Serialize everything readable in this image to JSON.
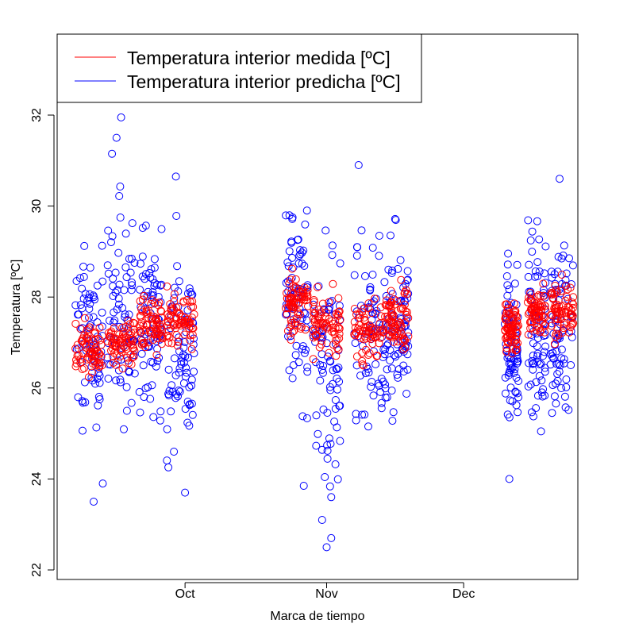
{
  "chart_data": {
    "type": "scatter",
    "title": "",
    "xlabel": "Marca de tiempo",
    "ylabel": "Temperatura [ºC]",
    "x_ticks": [
      "Oct",
      "Nov",
      "Dec"
    ],
    "y_ticks": [
      "22",
      "24",
      "26",
      "28",
      "30",
      "32"
    ],
    "xlim": [
      "2014-09-03",
      "2014-12-26"
    ],
    "ylim": [
      22,
      32.3
    ],
    "grid": false,
    "legend_position": "top-left",
    "series": [
      {
        "name": "Temperatura interior medida [ºC]",
        "color": "#ff0000",
        "marker": "open-circle",
        "clusters": [
          {
            "start": "2014-09-07",
            "end": "2014-09-13",
            "center": 26.9,
            "spread": 0.35
          },
          {
            "start": "2014-09-14",
            "end": "2014-09-20",
            "center": 27.0,
            "spread": 0.35
          },
          {
            "start": "2014-09-21",
            "end": "2014-09-26",
            "center": 27.4,
            "spread": 0.4
          },
          {
            "start": "2014-09-27",
            "end": "2014-10-03",
            "center": 27.5,
            "spread": 0.4
          },
          {
            "start": "2014-10-23",
            "end": "2014-10-28",
            "center": 27.8,
            "spread": 0.35
          },
          {
            "start": "2014-10-29",
            "end": "2014-11-04",
            "center": 27.4,
            "spread": 0.4
          },
          {
            "start": "2014-11-07",
            "end": "2014-11-14",
            "center": 27.3,
            "spread": 0.4
          },
          {
            "start": "2014-11-14",
            "end": "2014-11-19",
            "center": 27.6,
            "spread": 0.4
          },
          {
            "start": "2014-12-10",
            "end": "2014-12-13",
            "center": 27.3,
            "spread": 0.35
          },
          {
            "start": "2014-12-15",
            "end": "2014-12-19",
            "center": 27.6,
            "spread": 0.35
          },
          {
            "start": "2014-12-20",
            "end": "2014-12-25",
            "center": 27.7,
            "spread": 0.35
          }
        ]
      },
      {
        "name": "Temperatura interior predicha [ºC]",
        "color": "#0000ff",
        "marker": "open-circle",
        "clusters": [
          {
            "start": "2014-09-07",
            "end": "2014-09-13",
            "center": 27.1,
            "spread": 1.1
          },
          {
            "start": "2014-09-14",
            "end": "2014-09-20",
            "center": 27.6,
            "spread": 1.5
          },
          {
            "start": "2014-09-21",
            "end": "2014-09-26",
            "center": 27.5,
            "spread": 1.2
          },
          {
            "start": "2014-09-27",
            "end": "2014-10-03",
            "center": 26.8,
            "spread": 1.4
          },
          {
            "start": "2014-10-23",
            "end": "2014-10-28",
            "center": 28.0,
            "spread": 1.3
          },
          {
            "start": "2014-10-29",
            "end": "2014-11-04",
            "center": 26.6,
            "spread": 1.6
          },
          {
            "start": "2014-11-07",
            "end": "2014-11-14",
            "center": 26.9,
            "spread": 1.3
          },
          {
            "start": "2014-11-14",
            "end": "2014-11-19",
            "center": 27.3,
            "spread": 1.2
          },
          {
            "start": "2014-12-10",
            "end": "2014-12-13",
            "center": 27.0,
            "spread": 1.1
          },
          {
            "start": "2014-12-15",
            "end": "2014-12-19",
            "center": 27.3,
            "spread": 1.2
          },
          {
            "start": "2014-12-20",
            "end": "2014-12-25",
            "center": 27.3,
            "spread": 1.1
          }
        ],
        "extreme_points": [
          {
            "x": "2014-09-17",
            "y": 31.95
          },
          {
            "x": "2014-09-16",
            "y": 31.5
          },
          {
            "x": "2014-09-15",
            "y": 31.15
          },
          {
            "x": "2014-09-29",
            "y": 30.65
          },
          {
            "x": "2014-11-08",
            "y": 30.9
          },
          {
            "x": "2014-12-22",
            "y": 30.6
          },
          {
            "x": "2014-09-11",
            "y": 23.5
          },
          {
            "x": "2014-09-13",
            "y": 23.9
          },
          {
            "x": "2014-10-01",
            "y": 23.7
          },
          {
            "x": "2014-11-01",
            "y": 22.5
          },
          {
            "x": "2014-11-02",
            "y": 22.7
          },
          {
            "x": "2014-10-31",
            "y": 23.1
          },
          {
            "x": "2014-11-02",
            "y": 23.6
          },
          {
            "x": "2014-12-11",
            "y": 24.0
          },
          {
            "x": "2014-10-27",
            "y": 23.85
          }
        ]
      }
    ]
  }
}
